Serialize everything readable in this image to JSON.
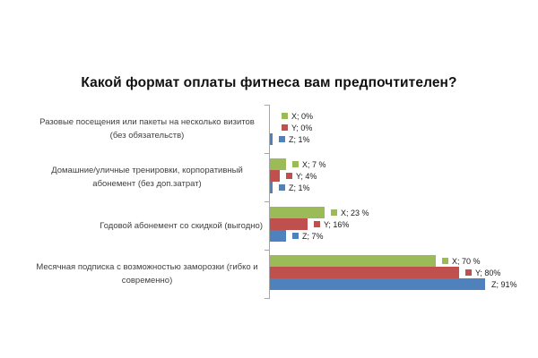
{
  "title": "Какой формат оплаты фитнеса вам предпочтителен?",
  "colors": {
    "series_x_green": "#9BBB59",
    "series_y_red": "#C0504D",
    "series_z_blue": "#4F81BD",
    "axis": "#A6A6A6",
    "category_text": "#404040",
    "label_text": "#1A1A1A",
    "background": "#FFFFFF"
  },
  "chart_data": {
    "type": "bar",
    "orientation": "horizontal",
    "title": "Какой формат оплаты фитнеса вам предпочтителен?",
    "xlabel": "",
    "ylabel": "",
    "xlim": [
      0,
      100
    ],
    "value_unit": "%",
    "grid": false,
    "legend_position": "none (legend keys shown inside data labels)",
    "categories": [
      "Разовые посещения или пакеты на несколько визитов (без обязательств)",
      "Домашние/уличные тренировки, корпоративный абонемент (без доп.затрат)",
      "Годовой абонемент со скидкой (выгодно)",
      "Месячная подписка с возможностью заморозки (гибко и современно)"
    ],
    "series": [
      {
        "name": "X",
        "color": "#9BBB59",
        "values": [
          0,
          7,
          23,
          70
        ],
        "labels": [
          "X; 0%",
          "X; 7 %",
          "X; 23 %",
          "X; 70 %"
        ],
        "keys": [
          true,
          true,
          true,
          true
        ]
      },
      {
        "name": "Y",
        "color": "#C0504D",
        "values": [
          0,
          4,
          16,
          80
        ],
        "labels": [
          "Y; 0%",
          "Y; 4%",
          "Y; 16%",
          "Y; 80%"
        ],
        "keys": [
          true,
          true,
          true,
          true
        ]
      },
      {
        "name": "Z",
        "color": "#4F81BD",
        "values": [
          1,
          1,
          7,
          91
        ],
        "labels": [
          "Z; 1%",
          "Z; 1%",
          "Z; 7%",
          "Z; 91%"
        ],
        "keys": [
          true,
          true,
          true,
          false
        ]
      }
    ]
  }
}
